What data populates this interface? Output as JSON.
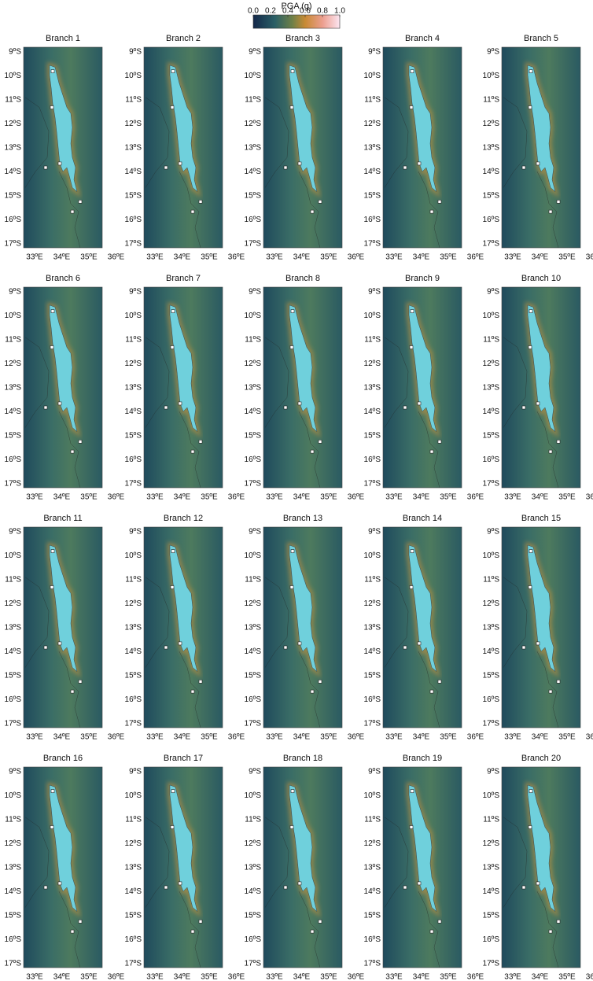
{
  "colorbar": {
    "title": "PGA (g)",
    "ticks": [
      {
        "value": 0,
        "label": "0.0"
      },
      0.2,
      0.4,
      0.6,
      0.8,
      {
        "value": 1,
        "label": "1.0"
      }
    ],
    "lim": [
      0,
      1
    ]
  },
  "panels": [
    "Branch 1",
    "Branch 2",
    "Branch 3",
    "Branch 4",
    "Branch 5",
    "Branch 6",
    "Branch 7",
    "Branch 8",
    "Branch 9",
    "Branch 10",
    "Branch 11",
    "Branch 12",
    "Branch 13",
    "Branch 14",
    "Branch 15",
    "Branch 16",
    "Branch 17",
    "Branch 18",
    "Branch 19",
    "Branch 20"
  ],
  "lat_labels": [
    "9ºS",
    "10ºS",
    "11ºS",
    "12ºS",
    "13ºS",
    "14ºS",
    "15ºS",
    "16ºS",
    "17ºS"
  ],
  "lon_labels": [
    "33ºE",
    "34ºE",
    "35ºE",
    "36ºE"
  ]
}
